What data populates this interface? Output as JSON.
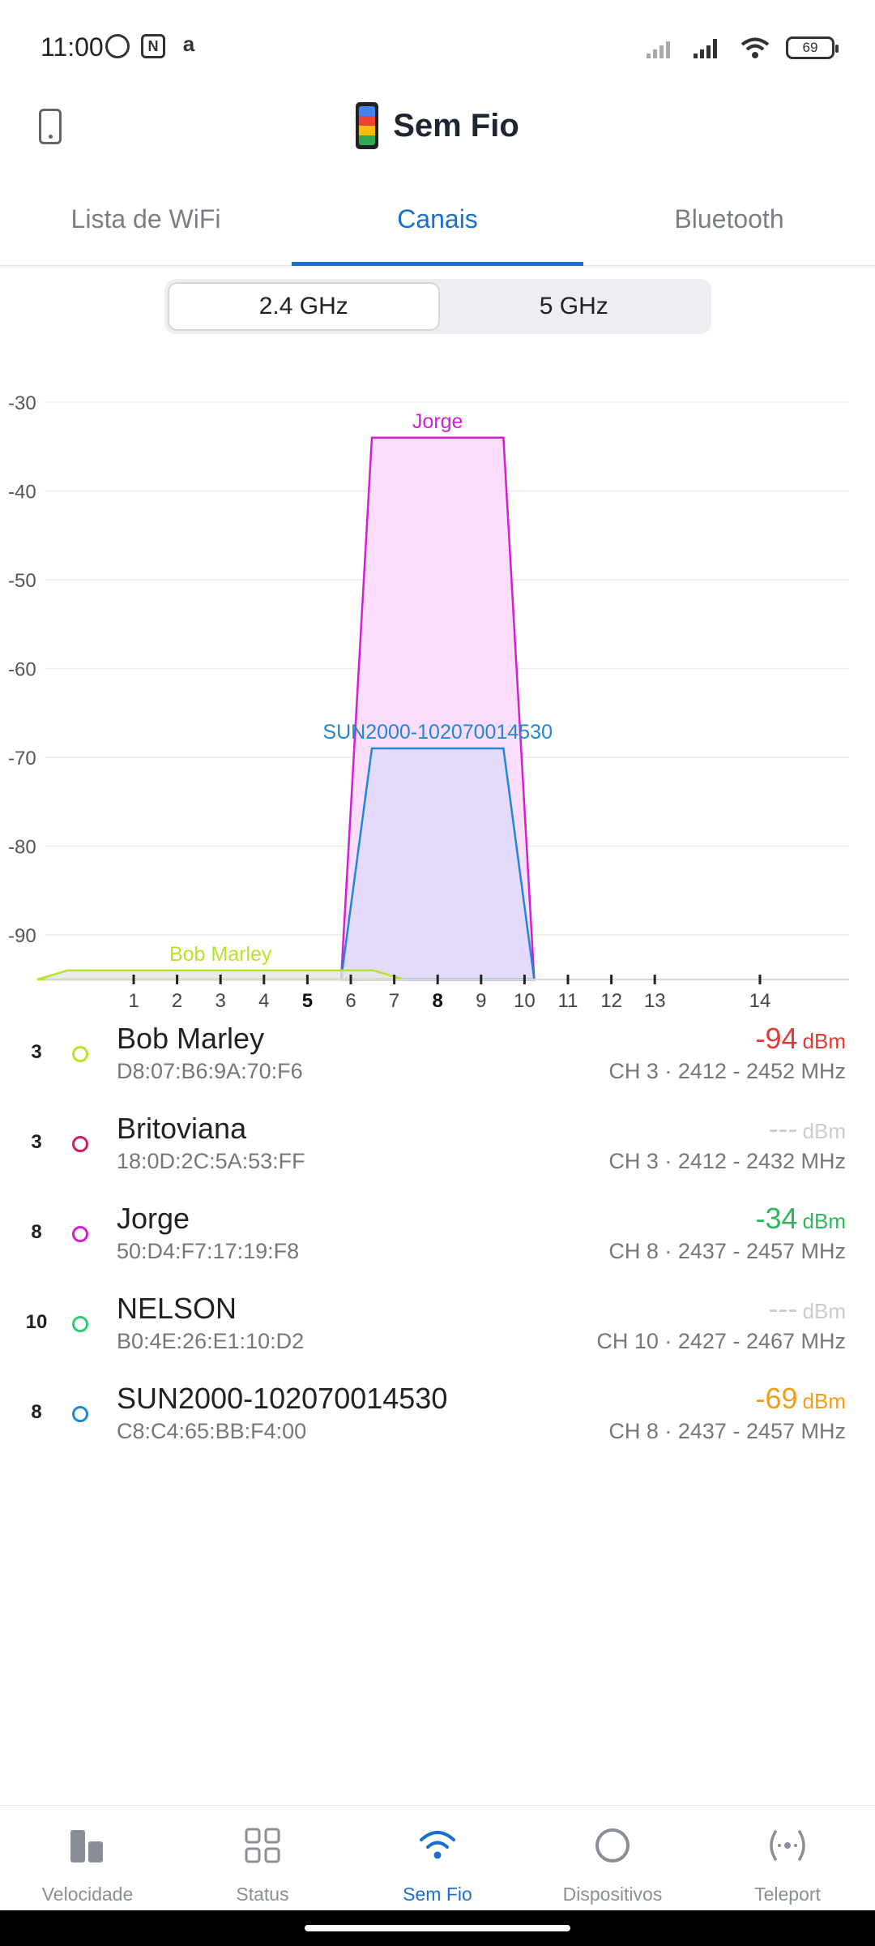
{
  "status_bar": {
    "time": "11:00",
    "battery": "69"
  },
  "header": {
    "title": "Sem Fio"
  },
  "tabs": [
    {
      "label": "Lista de WiFi",
      "active": false
    },
    {
      "label": "Canais",
      "active": true
    },
    {
      "label": "Bluetooth",
      "active": false
    }
  ],
  "bands": [
    {
      "label": "2.4 GHz",
      "active": true
    },
    {
      "label": "5 GHz",
      "active": false
    }
  ],
  "chart_data": {
    "type": "area",
    "y_ticks": [
      -30,
      -40,
      -50,
      -60,
      -70,
      -80,
      -90
    ],
    "ylim": [
      -95,
      -28
    ],
    "x_channels": [
      "1",
      "2",
      "3",
      "4",
      "5",
      "6",
      "7",
      "8",
      "9",
      "10",
      "11",
      "12",
      "13",
      "14"
    ],
    "x_bold_channels": [
      "5",
      "8"
    ],
    "series": [
      {
        "name": "Jorge",
        "channel": 8,
        "width_mhz": 20,
        "dbm": -34,
        "color": "#d21fd2",
        "fill": "#fbd5fb"
      },
      {
        "name": "SUN2000-102070014530",
        "channel": 8,
        "width_mhz": 20,
        "dbm": -69,
        "color": "#1e88d6",
        "fill": "#dcd9fb"
      },
      {
        "name": "Bob Marley",
        "channel": 3,
        "width_mhz": 40,
        "dbm": -94,
        "color": "#b7e42a",
        "fill": "#e6e6e6"
      }
    ]
  },
  "networks": [
    {
      "channel": "3",
      "name": "Bob Marley",
      "mac": "D8:07:B6:9A:70:F6",
      "signal": "-94",
      "unit": "dBm",
      "info": "CH 3 · 2412 - 2452 MHz",
      "dot_color": "#b7e42a",
      "signal_color": "#e53935"
    },
    {
      "channel": "3",
      "name": "Britoviana",
      "mac": "18:0D:2C:5A:53:FF",
      "signal": "---",
      "unit": "dBm",
      "info": "CH 3 · 2412 - 2432 MHz",
      "dot_color": "#d81b60",
      "signal_color": "#c9ccd2"
    },
    {
      "channel": "8",
      "name": "Jorge",
      "mac": "50:D4:F7:17:19:F8",
      "signal": "-34",
      "unit": "dBm",
      "info": "CH 8 · 2437 - 2457 MHz",
      "dot_color": "#d21fd2",
      "signal_color": "#2eb85c"
    },
    {
      "channel": "10",
      "name": "NELSON",
      "mac": "B0:4E:26:E1:10:D2",
      "signal": "---",
      "unit": "dBm",
      "info": "CH 10 · 2427 - 2467 MHz",
      "dot_color": "#2ecc71",
      "signal_color": "#c9ccd2"
    },
    {
      "channel": "8",
      "name": "SUN2000-102070014530",
      "mac": "C8:C4:65:BB:F4:00",
      "signal": "-69",
      "unit": "dBm",
      "info": "CH 8 · 2437 - 2457 MHz",
      "dot_color": "#1e88d6",
      "signal_color": "#f29d14"
    }
  ],
  "bottom_nav": [
    {
      "label": "Velocidade",
      "icon": "speed-bars-icon",
      "active": false
    },
    {
      "label": "Status",
      "icon": "grid-icon",
      "active": false
    },
    {
      "label": "Sem Fio",
      "icon": "wifi-icon",
      "active": true
    },
    {
      "label": "Dispositivos",
      "icon": "circle-icon",
      "active": false
    },
    {
      "label": "Teleport",
      "icon": "teleport-icon",
      "active": false
    }
  ]
}
